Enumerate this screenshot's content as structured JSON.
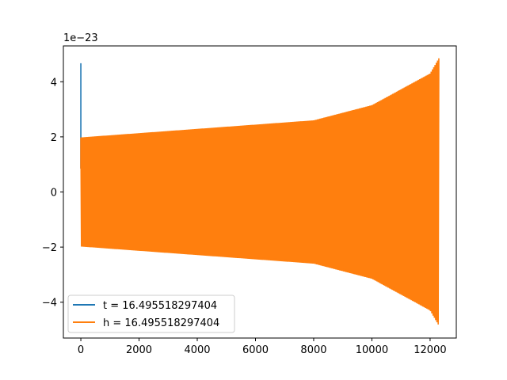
{
  "chart_data": {
    "type": "line",
    "y_offset_label": "1e−23",
    "x_ticks": [
      0,
      2000,
      4000,
      6000,
      8000,
      10000,
      12000
    ],
    "x_tick_labels": [
      "0",
      "2000",
      "4000",
      "6000",
      "8000",
      "10000",
      "12000"
    ],
    "y_ticks": [
      -4,
      -2,
      0,
      2,
      4
    ],
    "y_tick_labels": [
      "−4",
      "−2",
      "0",
      "2",
      "4"
    ],
    "xlim": [
      -600,
      12900
    ],
    "ylim": [
      -5.3,
      5.3
    ],
    "grid": false,
    "legend_placement": "lower-left",
    "series": [
      {
        "name": "t = 16.495518297404",
        "color": "#1f77b4",
        "spike": {
          "x": 0,
          "y_max": 4.67,
          "y_min": 0.85
        },
        "start_x": 0,
        "end_x": 12300
      },
      {
        "name": "h = 16.495518297404",
        "color": "#ff7f0e",
        "envelope": {
          "start_x": 0,
          "end_x": 12300,
          "start_amplitude": 1.98,
          "amplitude_at_8000": 2.6,
          "amplitude_at_10000": 3.15,
          "amplitude_at_12000": 4.3,
          "end_amplitude": 4.85
        },
        "start_value": 0.85
      }
    ]
  }
}
